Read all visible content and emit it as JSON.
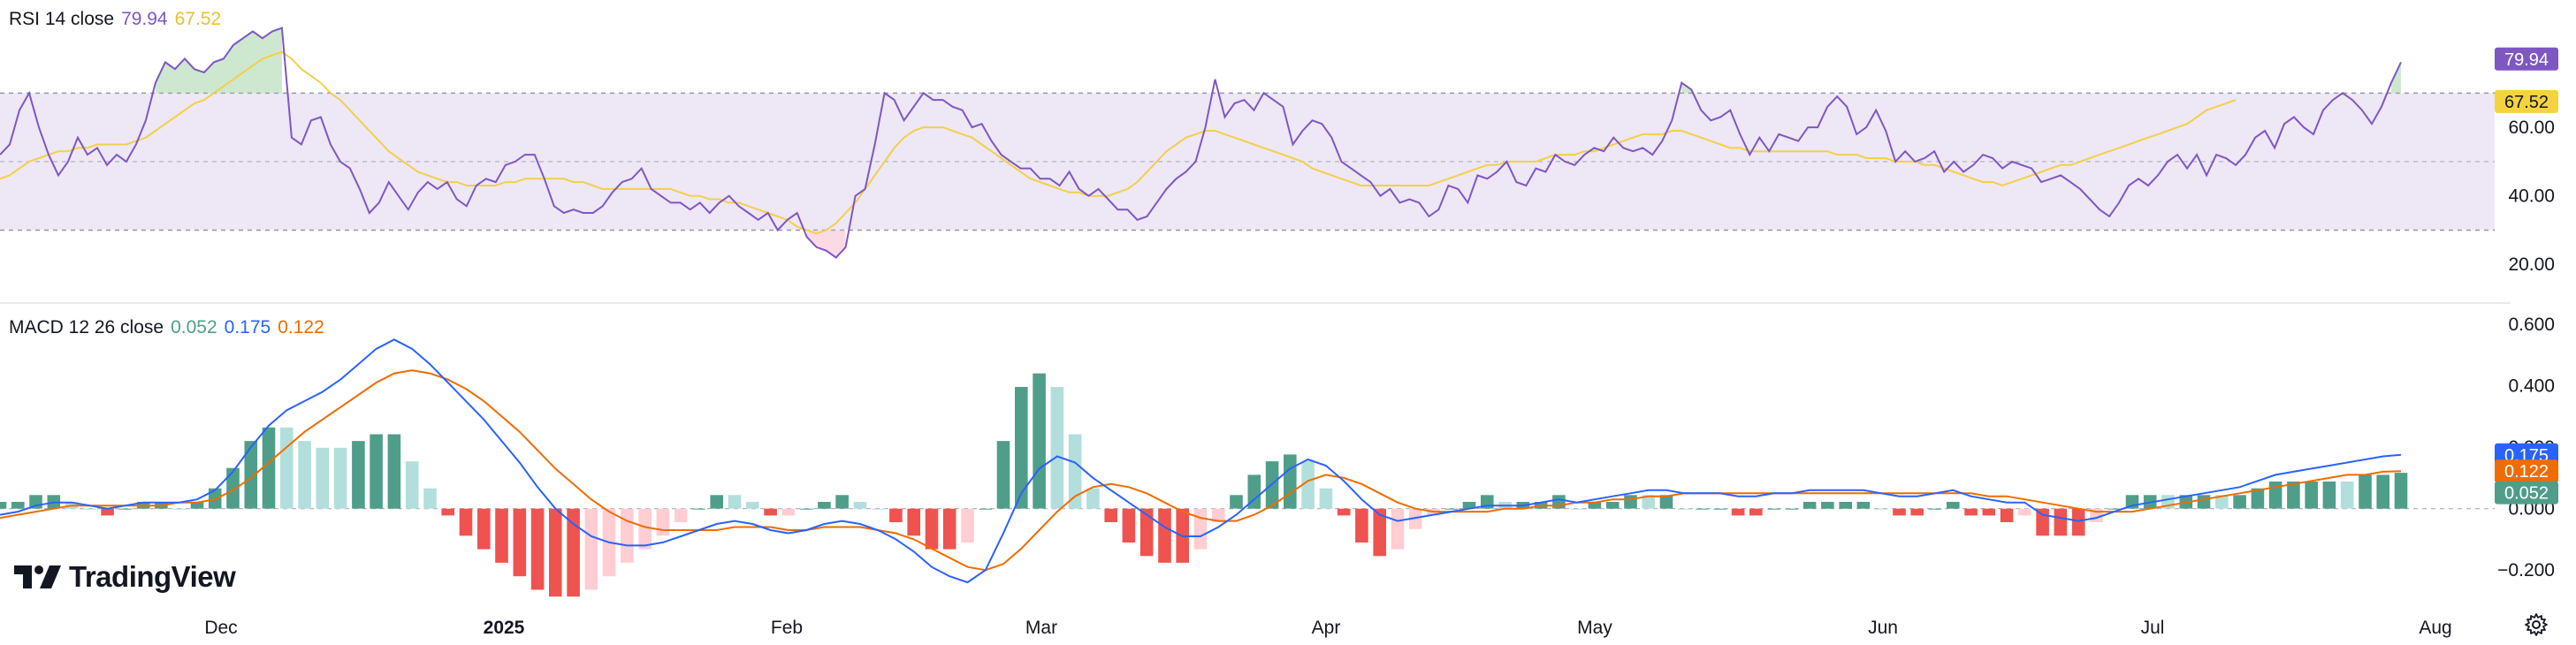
{
  "rsi": {
    "label": "RSI 14 close",
    "value": "79.94",
    "ma_value": "67.52",
    "value_badge": "79.94",
    "ma_badge": "67.52",
    "axis_ticks": [
      "60.00",
      "40.00",
      "20.00"
    ]
  },
  "macd": {
    "label": "MACD 12 26 close",
    "hist_value": "0.052",
    "macd_value": "0.175",
    "signal_value": "0.122",
    "hist_badge": "0.052",
    "macd_badge": "0.175",
    "signal_badge": "0.122",
    "axis_ticks": [
      "0.600",
      "0.400",
      "0.200",
      "0.000",
      "−0.200"
    ]
  },
  "x_axis": {
    "ticks": [
      "Dec",
      "2025",
      "Feb",
      "Mar",
      "Apr",
      "May",
      "Jun",
      "Jul",
      "Aug"
    ]
  },
  "branding": {
    "logo_text": "TradingView"
  },
  "colors": {
    "rsi_line": "#7e57c2",
    "rsi_ma": "#f2d04a",
    "rsi_band": "#ede7f6",
    "macd_line": "#2962ff",
    "signal_line": "#ef6c00",
    "hist_up_strong": "#4f9e8a",
    "hist_up_weak": "#b2dfdb",
    "hist_down_strong": "#ef5350",
    "hist_down_weak": "#ffcdd2",
    "badge_rsi": "#7e57c2",
    "badge_ma": "#f5d33f",
    "badge_macd": "#2962ff",
    "badge_signal": "#ef6c00",
    "badge_hist": "#4f9e8a"
  },
  "chart_data": [
    {
      "type": "line",
      "title": "RSI 14 close",
      "ylim": [
        10,
        92
      ],
      "bands": {
        "upper": 70,
        "middle": 50,
        "lower": 30
      },
      "series": [
        {
          "name": "RSI",
          "values": [
            52,
            55,
            65,
            70,
            60,
            52,
            46,
            50,
            57,
            52,
            54,
            49,
            52,
            50,
            55,
            62,
            73,
            79,
            77,
            80,
            77,
            76,
            79,
            80,
            84,
            86,
            88,
            86,
            88,
            89,
            57,
            55,
            62,
            63,
            55,
            50,
            48,
            42,
            35,
            38,
            44,
            40,
            36,
            41,
            44,
            42,
            44,
            39,
            37,
            43,
            45,
            44,
            49,
            50,
            52,
            52,
            45,
            37,
            35,
            36,
            35,
            35,
            37,
            41,
            44,
            45,
            48,
            42,
            40,
            38,
            38,
            36,
            38,
            35,
            38,
            40,
            37,
            35,
            33,
            35,
            30,
            33,
            35,
            28,
            25,
            24,
            22,
            25,
            40,
            42,
            55,
            70,
            68,
            62,
            66,
            70,
            68,
            68,
            66,
            65,
            60,
            61,
            56,
            52,
            50,
            48,
            48,
            45,
            45,
            43,
            47,
            42,
            40,
            42,
            39,
            36,
            36,
            33,
            34,
            38,
            42,
            45,
            47,
            50,
            60,
            74,
            63,
            67,
            68,
            65,
            70,
            68,
            66,
            55,
            59,
            62,
            61,
            57,
            50,
            48,
            46,
            44,
            40,
            42,
            38,
            39,
            38,
            34,
            36,
            43,
            42,
            38,
            46,
            45,
            47,
            50,
            44,
            43,
            48,
            47,
            52,
            50,
            49,
            52,
            54,
            53,
            57,
            54,
            53,
            54,
            52,
            56,
            62,
            73,
            71,
            65,
            62,
            63,
            65,
            58,
            52,
            57,
            53,
            58,
            57,
            56,
            60,
            60,
            66,
            69,
            66,
            58,
            60,
            65,
            59,
            50,
            53,
            50,
            51,
            53,
            47,
            50,
            47,
            49,
            52,
            51,
            48,
            50,
            49,
            48,
            44,
            45,
            46,
            44,
            42,
            39,
            36,
            34,
            38,
            43,
            45,
            43,
            46,
            50,
            52,
            48,
            52,
            46,
            52,
            51,
            49,
            52,
            57,
            59,
            54,
            61,
            63,
            60,
            58,
            65,
            68,
            70,
            68,
            65,
            61,
            66,
            73,
            79
          ]
        },
        {
          "name": "RSI MA",
          "values": [
            45,
            46,
            48,
            50,
            51,
            52,
            53,
            53,
            54,
            54,
            55,
            55,
            55,
            55,
            56,
            57,
            59,
            61,
            63,
            65,
            67,
            68,
            70,
            72,
            74,
            76,
            78,
            80,
            81,
            82,
            80,
            77,
            75,
            73,
            70,
            68,
            65,
            62,
            59,
            56,
            53,
            51,
            49,
            47,
            46,
            45,
            44,
            44,
            43,
            43,
            43,
            43,
            44,
            44,
            45,
            45,
            45,
            45,
            45,
            44,
            44,
            43,
            42,
            42,
            42,
            42,
            42,
            42,
            42,
            42,
            41,
            40,
            40,
            39,
            39,
            38,
            38,
            37,
            36,
            35,
            34,
            33,
            31,
            30,
            29,
            30,
            32,
            35,
            38,
            42,
            46,
            50,
            54,
            57,
            59,
            60,
            60,
            60,
            59,
            58,
            57,
            55,
            53,
            51,
            49,
            47,
            45,
            44,
            43,
            42,
            41,
            41,
            40,
            40,
            40,
            41,
            42,
            44,
            47,
            50,
            53,
            55,
            57,
            58,
            59,
            59,
            58,
            57,
            56,
            55,
            54,
            53,
            52,
            51,
            50,
            48,
            47,
            46,
            45,
            44,
            43,
            43,
            43,
            43,
            43,
            43,
            43,
            43,
            44,
            45,
            46,
            47,
            48,
            49,
            49,
            50,
            50,
            50,
            50,
            51,
            52,
            52,
            52,
            53,
            53,
            54,
            55,
            56,
            57,
            58,
            58,
            58,
            59,
            59,
            58,
            57,
            56,
            55,
            54,
            54,
            53,
            53,
            53,
            53,
            53,
            53,
            53,
            53,
            53,
            52,
            52,
            52,
            51,
            51,
            51,
            50,
            50,
            50,
            49,
            49,
            48,
            47,
            46,
            45,
            44,
            44,
            43,
            44,
            45,
            46,
            47,
            48,
            49,
            49,
            50,
            51,
            52,
            53,
            54,
            55,
            56,
            57,
            58,
            59,
            60,
            61,
            63,
            65,
            66,
            67,
            68
          ]
        }
      ]
    },
    {
      "type": "line",
      "title": "MACD 12 26 close",
      "ylim": [
        -0.3,
        0.62
      ],
      "series": [
        {
          "name": "MACD",
          "values": [
            -0.02,
            -0.01,
            0.01,
            0.02,
            0.02,
            0.01,
            0.0,
            0.01,
            0.02,
            0.02,
            0.02,
            0.03,
            0.06,
            0.12,
            0.2,
            0.27,
            0.32,
            0.35,
            0.38,
            0.42,
            0.47,
            0.52,
            0.55,
            0.52,
            0.47,
            0.41,
            0.35,
            0.29,
            0.22,
            0.15,
            0.07,
            0.0,
            -0.05,
            -0.09,
            -0.11,
            -0.12,
            -0.12,
            -0.11,
            -0.09,
            -0.07,
            -0.05,
            -0.04,
            -0.05,
            -0.07,
            -0.08,
            -0.07,
            -0.05,
            -0.04,
            -0.05,
            -0.07,
            -0.1,
            -0.14,
            -0.19,
            -0.22,
            -0.24,
            -0.2,
            -0.08,
            0.05,
            0.13,
            0.17,
            0.15,
            0.1,
            0.06,
            0.02,
            -0.02,
            -0.06,
            -0.09,
            -0.09,
            -0.06,
            -0.02,
            0.03,
            0.08,
            0.13,
            0.16,
            0.14,
            0.09,
            0.03,
            -0.02,
            -0.04,
            -0.03,
            -0.02,
            -0.01,
            0.0,
            0.01,
            0.01,
            0.01,
            0.02,
            0.03,
            0.02,
            0.03,
            0.04,
            0.05,
            0.06,
            0.06,
            0.05,
            0.05,
            0.05,
            0.04,
            0.04,
            0.05,
            0.05,
            0.06,
            0.06,
            0.06,
            0.06,
            0.05,
            0.04,
            0.04,
            0.05,
            0.06,
            0.04,
            0.03,
            0.02,
            0.02,
            -0.02,
            -0.03,
            -0.04,
            -0.03,
            -0.01,
            0.01,
            0.02,
            0.03,
            0.04,
            0.05,
            0.06,
            0.07,
            0.09,
            0.11,
            0.12,
            0.13,
            0.14,
            0.15,
            0.16,
            0.17,
            0.175
          ]
        },
        {
          "name": "Signal",
          "values": [
            -0.03,
            -0.02,
            -0.01,
            0.0,
            0.01,
            0.01,
            0.01,
            0.01,
            0.01,
            0.01,
            0.02,
            0.02,
            0.03,
            0.06,
            0.1,
            0.15,
            0.2,
            0.25,
            0.29,
            0.33,
            0.37,
            0.41,
            0.44,
            0.45,
            0.44,
            0.42,
            0.39,
            0.35,
            0.3,
            0.25,
            0.19,
            0.13,
            0.08,
            0.03,
            -0.01,
            -0.04,
            -0.06,
            -0.07,
            -0.07,
            -0.07,
            -0.07,
            -0.06,
            -0.06,
            -0.06,
            -0.07,
            -0.07,
            -0.06,
            -0.06,
            -0.06,
            -0.07,
            -0.08,
            -0.1,
            -0.13,
            -0.16,
            -0.19,
            -0.2,
            -0.18,
            -0.13,
            -0.07,
            -0.01,
            0.04,
            0.07,
            0.08,
            0.07,
            0.05,
            0.02,
            -0.01,
            -0.03,
            -0.04,
            -0.04,
            -0.02,
            0.01,
            0.05,
            0.09,
            0.11,
            0.1,
            0.08,
            0.05,
            0.02,
            0.0,
            -0.01,
            -0.01,
            -0.01,
            -0.01,
            0.0,
            0.0,
            0.01,
            0.01,
            0.02,
            0.02,
            0.03,
            0.03,
            0.04,
            0.04,
            0.05,
            0.05,
            0.05,
            0.05,
            0.05,
            0.05,
            0.05,
            0.05,
            0.05,
            0.05,
            0.05,
            0.05,
            0.05,
            0.05,
            0.05,
            0.05,
            0.05,
            0.04,
            0.04,
            0.03,
            0.02,
            0.01,
            0.0,
            -0.01,
            -0.01,
            -0.01,
            0.0,
            0.01,
            0.02,
            0.03,
            0.04,
            0.05,
            0.06,
            0.07,
            0.08,
            0.09,
            0.1,
            0.11,
            0.11,
            0.12,
            0.122
          ]
        }
      ]
    }
  ]
}
